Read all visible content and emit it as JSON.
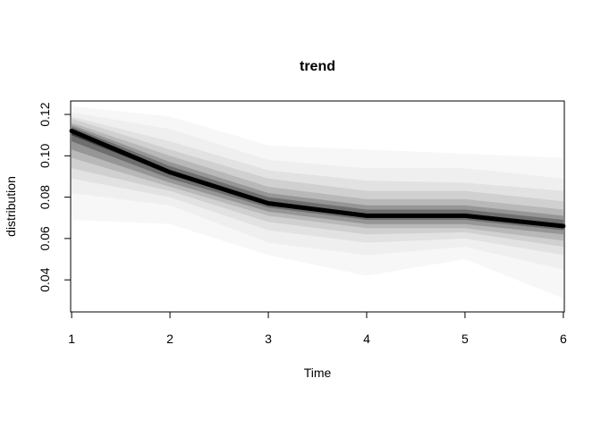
{
  "chart_data": {
    "type": "area",
    "title": "trend",
    "xlabel": "Time",
    "ylabel": "distribution",
    "xlim": [
      0.99,
      6.01
    ],
    "ylim": [
      0.0245,
      0.1265
    ],
    "x_ticks": [
      1,
      2,
      3,
      4,
      5,
      6
    ],
    "y_ticks": [
      0.04,
      0.06,
      0.08,
      0.1,
      0.12
    ],
    "y_tick_labels": [
      "0.04",
      "0.06",
      "0.08",
      "0.10",
      "0.12"
    ],
    "grid": false,
    "legend": "none",
    "x": [
      1,
      2,
      3,
      4,
      5,
      6
    ],
    "median": [
      0.112,
      0.092,
      0.077,
      0.071,
      0.071,
      0.066
    ],
    "bands": [
      {
        "lower": [
          0.069,
          0.067,
          0.052,
          0.042,
          0.05,
          0.031
        ],
        "upper": [
          0.124,
          0.119,
          0.105,
          0.103,
          0.101,
          0.099
        ]
      },
      {
        "lower": [
          0.082,
          0.076,
          0.058,
          0.052,
          0.056,
          0.045
        ],
        "upper": [
          0.121,
          0.113,
          0.098,
          0.094,
          0.094,
          0.089
        ]
      },
      {
        "lower": [
          0.089,
          0.08,
          0.064,
          0.058,
          0.06,
          0.052
        ],
        "upper": [
          0.119,
          0.107,
          0.093,
          0.088,
          0.087,
          0.083
        ]
      },
      {
        "lower": [
          0.094,
          0.083,
          0.068,
          0.062,
          0.063,
          0.056
        ],
        "upper": [
          0.118,
          0.103,
          0.089,
          0.083,
          0.083,
          0.078
        ]
      },
      {
        "lower": [
          0.099,
          0.085,
          0.071,
          0.065,
          0.065,
          0.059
        ],
        "upper": [
          0.116,
          0.1,
          0.085,
          0.079,
          0.079,
          0.074
        ]
      },
      {
        "lower": [
          0.103,
          0.087,
          0.073,
          0.067,
          0.067,
          0.062
        ],
        "upper": [
          0.115,
          0.097,
          0.082,
          0.076,
          0.076,
          0.071
        ]
      },
      {
        "lower": [
          0.107,
          0.089,
          0.075,
          0.069,
          0.069,
          0.064
        ],
        "upper": [
          0.114,
          0.095,
          0.08,
          0.074,
          0.074,
          0.069
        ]
      },
      {
        "lower": [
          0.11,
          0.091,
          0.076,
          0.07,
          0.07,
          0.065
        ],
        "upper": [
          0.113,
          0.093,
          0.078,
          0.072,
          0.072,
          0.067
        ]
      }
    ],
    "band_colors": [
      "#f7f7f7",
      "#efefef",
      "#e2e2e2",
      "#d0d0d0",
      "#b8b8b8",
      "#969696",
      "#6e6e6e",
      "#3c3c3c"
    ],
    "line_color": "#000000"
  }
}
